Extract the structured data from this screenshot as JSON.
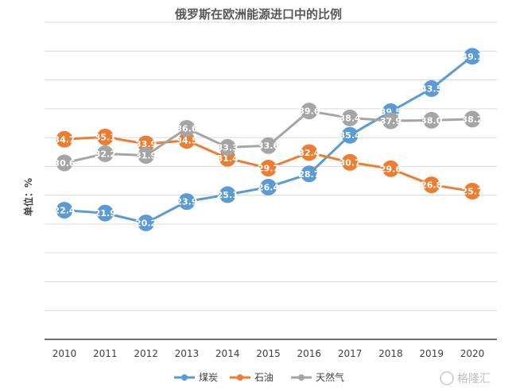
{
  "chart_data": {
    "type": "line",
    "title": "俄罗斯在欧洲能源进口中的比例",
    "xlabel": "",
    "ylabel": "单位：%",
    "categories": [
      "2010",
      "2011",
      "2012",
      "2013",
      "2014",
      "2015",
      "2016",
      "2017",
      "2018",
      "2019",
      "2020"
    ],
    "ylim": [
      0,
      55
    ],
    "grid": true,
    "legend_position": "bottom",
    "series": [
      {
        "name": "煤炭",
        "color": "#5b9bd5",
        "values": [
          22.4,
          21.9,
          20.2,
          23.9,
          25.1,
          26.4,
          28.7,
          35.4,
          39.5,
          43.5,
          49.1
        ]
      },
      {
        "name": "石油",
        "color": "#ed7d31",
        "values": [
          34.7,
          35.1,
          33.9,
          34.5,
          31.4,
          29.7,
          32.4,
          30.7,
          29.6,
          26.8,
          25.7
        ]
      },
      {
        "name": "天然气",
        "color": "#a5a5a5",
        "values": [
          30.6,
          32.2,
          31.9,
          36.6,
          33.3,
          33.6,
          39.6,
          38.4,
          37.9,
          38.0,
          38.2
        ]
      }
    ]
  },
  "watermark": {
    "text": "格隆汇"
  }
}
